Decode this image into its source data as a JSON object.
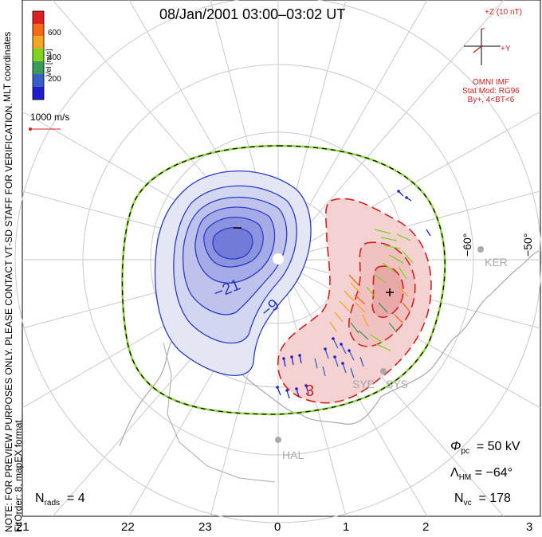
{
  "title": "08/Jan/2001 03:00–03:02 UT",
  "coordinates_label": "MLT coordinates",
  "note_lines": [
    "NOTE: FOR PREVIEW PURPOSES ONLY. PLEASE CONTACT VT-SD STAFF FOR VERIFICATION.",
    "FitOrder: 8, mapEX format"
  ],
  "colorbar": {
    "label": "Vel [m/s]",
    "ticks": [
      "600",
      "400",
      "200"
    ],
    "colors": [
      "#e02020",
      "#f36a17",
      "#f5a623",
      "#7ed321",
      "#3a9a5a",
      "#3a5fc8",
      "#1f1fd0"
    ]
  },
  "velocity_scale": "1000 m/s",
  "imf": {
    "field": "+Z (10 nT)",
    "y_label": "+Y",
    "source": "OMNI IMF",
    "model": "Stat Mod: RG96",
    "condition": "By+, 4<BT<6"
  },
  "latitude_labels": [
    "−60°",
    "−50°"
  ],
  "stations": [
    "KER",
    "SYE",
    "SYS",
    "HAL"
  ],
  "contour_labels": [
    "−21",
    "−9",
    "3"
  ],
  "stats": {
    "phi_pc": "50 kV",
    "lambda_hm": "−64°",
    "n_vc": "178",
    "n_rads": "4"
  },
  "mlt_ticks": [
    "21",
    "22",
    "23",
    "0",
    "1",
    "2",
    "3"
  ],
  "theme": {
    "negative": "#4a56d6",
    "positive": "#e03b3b",
    "boundary_green": "#8ed43a",
    "grid": "#c9c9c9",
    "coast": "#a9a9a9"
  }
}
